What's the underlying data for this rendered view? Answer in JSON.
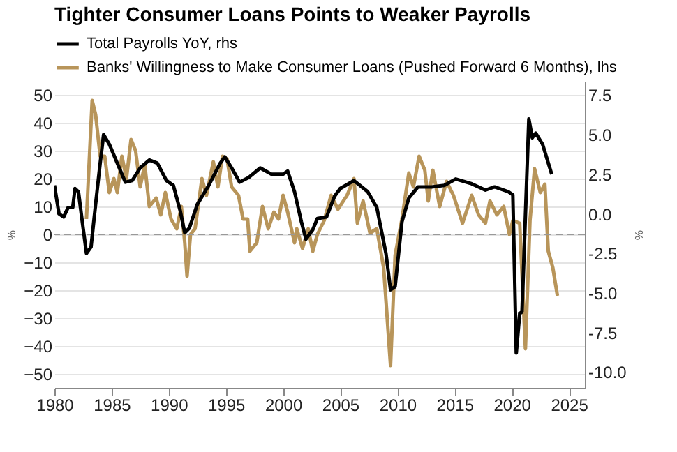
{
  "chart_data": {
    "type": "line",
    "title": "Tighter Consumer Loans Points to Weaker Payrolls",
    "ylabel": "%",
    "y2label": "%",
    "xlim": [
      1980,
      2026.4
    ],
    "xticks": [
      1980,
      1985,
      1990,
      1995,
      2000,
      2005,
      2010,
      2015,
      2020,
      2025
    ],
    "ylim": [
      -55,
      55
    ],
    "yticks": [
      -50,
      -40,
      -30,
      -20,
      -10,
      0,
      10,
      20,
      30,
      40,
      50
    ],
    "y2lim": [
      -11,
      8.4
    ],
    "y2ticks": [
      {
        "value": -10,
        "label": "-10.0"
      },
      {
        "value": -7.5,
        "label": "-7.5"
      },
      {
        "value": -5,
        "label": "-5.0"
      },
      {
        "value": -2.5,
        "label": "-2.5"
      },
      {
        "value": 0,
        "label": "0.0"
      },
      {
        "value": 2.5,
        "label": "2.5"
      },
      {
        "value": 5,
        "label": "5.0"
      },
      {
        "value": 7.5,
        "label": "7.5"
      }
    ],
    "grid": "y",
    "legend": "top left",
    "line_style": "solid",
    "ref_lines": [
      {
        "axis": "y",
        "value": 0,
        "color": "#999999",
        "line_style": "dashed"
      }
    ],
    "series": [
      {
        "name": "Total Payrolls YoY, rhs",
        "color": "#000000",
        "axis": "y2",
        "x": [
          1980,
          1980.4,
          1980.8,
          1981.2,
          1981.6,
          1981.8,
          1982.1,
          1982.4,
          1982.8,
          1983.2,
          1983.6,
          1984.0,
          1984.3,
          1984.8,
          1985.5,
          1986.2,
          1986.8,
          1987.5,
          1988.3,
          1989.0,
          1989.8,
          1990.4,
          1991.0,
          1991.4,
          1991.8,
          1992.5,
          1993.5,
          1994.5,
          1994.9,
          1995.5,
          1996.2,
          1997,
          1998,
          1999,
          2000.0,
          2000.4,
          2001.0,
          2001.6,
          2002.0,
          2002.6,
          2003,
          2003.8,
          2004.5,
          2005.0,
          2006.2,
          2007.4,
          2008.2,
          2009.0,
          2009.4,
          2009.8,
          2010.4,
          2011.0,
          2011.8,
          2013,
          2014.1,
          2015.1,
          2016.5,
          2017.7,
          2018.5,
          2019.7,
          2020.1,
          2020.4,
          2020.7,
          2020.9,
          2021.5,
          2021.8,
          2022.1,
          2022.7,
          2023.5
        ],
        "values": [
          1.8,
          0.0,
          -0.2,
          0.4,
          0.4,
          1.6,
          1.4,
          -0.3,
          -2.5,
          -2.1,
          0.6,
          3.2,
          5.0,
          4.4,
          3.2,
          2.0,
          2.1,
          2.9,
          3.4,
          3.2,
          2.1,
          1.8,
          0.2,
          -1.2,
          -0.9,
          0.6,
          1.8,
          3.2,
          3.6,
          2.9,
          2.0,
          2.3,
          2.9,
          2.5,
          2.5,
          2.7,
          1.4,
          -0.5,
          -1.6,
          -1.0,
          -0.3,
          -0.2,
          1.1,
          1.6,
          2.1,
          1.4,
          0.4,
          -2.5,
          -4.8,
          -4.6,
          -0.5,
          1.0,
          1.7,
          1.7,
          1.8,
          2.2,
          1.9,
          1.5,
          1.7,
          1.4,
          1.2,
          -8.8,
          -6.3,
          -6.2,
          6.0,
          4.8,
          5.1,
          4.4,
          2.5
        ]
      },
      {
        "name": "Banks' Willingness to Make Consumer Loans (Pushed Forward 6 Months), lhs",
        "color": "#b8955a",
        "x": [
          1982.8,
          1983.3,
          1983.6,
          1984.0,
          1984.4,
          1984.8,
          1985.2,
          1985.5,
          1985.9,
          1986.3,
          1986.7,
          1987.1,
          1987.5,
          1987.9,
          1988.3,
          1988.9,
          1989.3,
          1989.7,
          1990.2,
          1990.7,
          1991.1,
          1991.4,
          1991.6,
          1991.9,
          1992.3,
          1992.9,
          1993.3,
          1993.9,
          1994.3,
          1994.7,
          1995.1,
          1995.5,
          1996.1,
          1996.5,
          1996.9,
          1997.1,
          1997.7,
          1998.2,
          1998.7,
          1999.2,
          1999.6,
          2000.0,
          2000.4,
          2001.0,
          2001.2,
          2001.7,
          2002.2,
          2002.6,
          2003.0,
          2003.6,
          2004.2,
          2004.8,
          2005.6,
          2006.2,
          2006.5,
          2007.0,
          2007.6,
          2008.2,
          2008.8,
          2009.4,
          2009.8,
          2010.4,
          2011.0,
          2011.4,
          2011.9,
          2012.4,
          2012.7,
          2013.1,
          2013.7,
          2014.3,
          2014.9,
          2015.7,
          2016.5,
          2017.1,
          2017.7,
          2018.1,
          2018.7,
          2019.3,
          2019.8,
          2020.1,
          2020.7,
          2021.2,
          2021.6,
          2022.0,
          2022.5,
          2022.9,
          2023.2,
          2023.6,
          2024.0
        ],
        "values": [
          5.5,
          48,
          43,
          28,
          28,
          15,
          20,
          15,
          28,
          20,
          34,
          30,
          17,
          25,
          10,
          13,
          7,
          15,
          5.5,
          2,
          10,
          -3,
          -15,
          0,
          2,
          20,
          14,
          26,
          17,
          28,
          27,
          17,
          14,
          5.5,
          5.5,
          -6,
          -3,
          10,
          2,
          8,
          5.5,
          14,
          8,
          -3,
          2,
          -5,
          2,
          -6,
          0,
          5,
          14,
          9,
          14,
          20,
          4,
          12,
          0.5,
          2,
          -12,
          -47,
          -7.5,
          5.5,
          22,
          17,
          28,
          23,
          12,
          23,
          10,
          19,
          14,
          4,
          14,
          7,
          4,
          12,
          7,
          10,
          0,
          5,
          4,
          -41,
          5,
          23.5,
          15,
          18,
          -6,
          -12,
          -22
        ]
      }
    ]
  }
}
